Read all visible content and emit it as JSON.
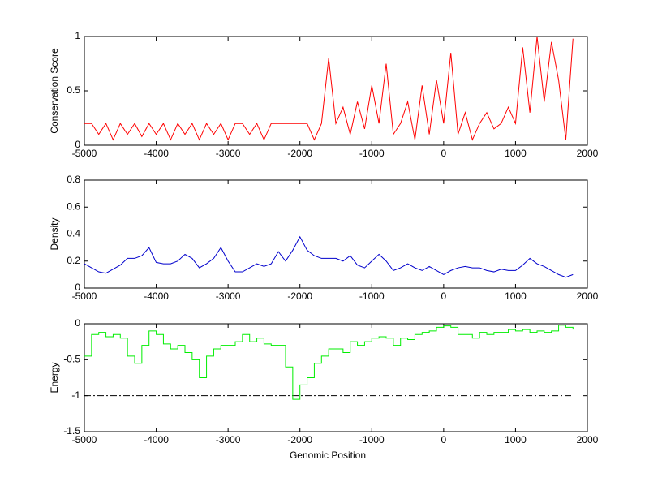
{
  "chart_data": [
    {
      "type": "line",
      "ylabel": "Conservation Score",
      "color": "#ff0000",
      "x": [
        -5000,
        -4900,
        -4800,
        -4700,
        -4600,
        -4500,
        -4400,
        -4300,
        -4200,
        -4100,
        -4000,
        -3900,
        -3800,
        -3700,
        -3600,
        -3500,
        -3400,
        -3300,
        -3200,
        -3100,
        -3000,
        -2900,
        -2800,
        -2700,
        -2600,
        -2500,
        -2400,
        -2300,
        -2200,
        -2100,
        -2000,
        -1900,
        -1800,
        -1700,
        -1600,
        -1500,
        -1400,
        -1300,
        -1200,
        -1100,
        -1000,
        -900,
        -800,
        -700,
        -600,
        -500,
        -400,
        -300,
        -200,
        -100,
        0,
        100,
        200,
        300,
        400,
        500,
        600,
        700,
        800,
        900,
        1000,
        1100,
        1200,
        1300,
        1400,
        1500,
        1600,
        1700,
        1800
      ],
      "values": [
        0.2,
        0.2,
        0.1,
        0.2,
        0.05,
        0.2,
        0.1,
        0.2,
        0.08,
        0.2,
        0.1,
        0.2,
        0.05,
        0.2,
        0.1,
        0.2,
        0.05,
        0.2,
        0.1,
        0.2,
        0.05,
        0.2,
        0.2,
        0.1,
        0.2,
        0.05,
        0.2,
        0.2,
        0.2,
        0.2,
        0.2,
        0.2,
        0.05,
        0.2,
        0.8,
        0.2,
        0.35,
        0.1,
        0.4,
        0.15,
        0.55,
        0.2,
        0.75,
        0.1,
        0.2,
        0.4,
        0.05,
        0.55,
        0.1,
        0.6,
        0.2,
        0.85,
        0.1,
        0.3,
        0.05,
        0.2,
        0.3,
        0.15,
        0.2,
        0.35,
        0.2,
        0.9,
        0.3,
        1.0,
        0.4,
        0.95,
        0.6,
        0.05,
        0.98
      ],
      "xlim": [
        -5000,
        2000
      ],
      "xticks": [
        -5000,
        -4000,
        -3000,
        -2000,
        -1000,
        0,
        1000,
        2000
      ],
      "ylim": [
        0,
        1
      ],
      "yticks": [
        0,
        0.5,
        1
      ]
    },
    {
      "type": "line",
      "ylabel": "Density",
      "color": "#0000cc",
      "x": [
        -5000,
        -4900,
        -4800,
        -4700,
        -4600,
        -4500,
        -4400,
        -4300,
        -4200,
        -4100,
        -4000,
        -3900,
        -3800,
        -3700,
        -3600,
        -3500,
        -3400,
        -3300,
        -3200,
        -3100,
        -3000,
        -2900,
        -2800,
        -2700,
        -2600,
        -2500,
        -2400,
        -2300,
        -2200,
        -2100,
        -2000,
        -1900,
        -1800,
        -1700,
        -1600,
        -1500,
        -1400,
        -1300,
        -1200,
        -1100,
        -1000,
        -900,
        -800,
        -700,
        -600,
        -500,
        -400,
        -300,
        -200,
        -100,
        0,
        100,
        200,
        300,
        400,
        500,
        600,
        700,
        800,
        900,
        1000,
        1100,
        1200,
        1300,
        1400,
        1500,
        1600,
        1700,
        1800
      ],
      "values": [
        0.18,
        0.15,
        0.12,
        0.11,
        0.14,
        0.17,
        0.22,
        0.22,
        0.24,
        0.3,
        0.19,
        0.18,
        0.18,
        0.2,
        0.25,
        0.22,
        0.15,
        0.18,
        0.22,
        0.3,
        0.2,
        0.12,
        0.12,
        0.15,
        0.18,
        0.16,
        0.18,
        0.27,
        0.2,
        0.28,
        0.38,
        0.28,
        0.24,
        0.22,
        0.22,
        0.22,
        0.2,
        0.24,
        0.17,
        0.15,
        0.2,
        0.25,
        0.2,
        0.13,
        0.15,
        0.18,
        0.15,
        0.13,
        0.16,
        0.13,
        0.1,
        0.13,
        0.15,
        0.16,
        0.15,
        0.15,
        0.13,
        0.12,
        0.14,
        0.13,
        0.13,
        0.17,
        0.22,
        0.18,
        0.16,
        0.13,
        0.1,
        0.08,
        0.1
      ],
      "xlim": [
        -5000,
        2000
      ],
      "xticks": [
        -5000,
        -4000,
        -3000,
        -2000,
        -1000,
        0,
        1000,
        2000
      ],
      "ylim": [
        0,
        0.8
      ],
      "yticks": [
        0,
        0.2,
        0.4,
        0.6,
        0.8
      ]
    },
    {
      "type": "line",
      "ylabel": "Energy",
      "xlabel": "Genomic Position",
      "color": "#00ee00",
      "drawstyle": "steps",
      "x": [
        -5000,
        -4900,
        -4800,
        -4700,
        -4600,
        -4500,
        -4400,
        -4300,
        -4200,
        -4100,
        -4000,
        -3900,
        -3800,
        -3700,
        -3600,
        -3500,
        -3400,
        -3300,
        -3200,
        -3100,
        -3000,
        -2900,
        -2800,
        -2700,
        -2600,
        -2500,
        -2400,
        -2300,
        -2200,
        -2100,
        -2000,
        -1900,
        -1800,
        -1700,
        -1600,
        -1500,
        -1400,
        -1300,
        -1200,
        -1100,
        -1000,
        -900,
        -800,
        -700,
        -600,
        -500,
        -400,
        -300,
        -200,
        -100,
        0,
        100,
        200,
        300,
        400,
        500,
        600,
        700,
        800,
        900,
        1000,
        1100,
        1200,
        1300,
        1400,
        1500,
        1600,
        1700,
        1800
      ],
      "values": [
        -0.45,
        -0.15,
        -0.12,
        -0.18,
        -0.15,
        -0.2,
        -0.45,
        -0.55,
        -0.3,
        -0.1,
        -0.15,
        -0.28,
        -0.35,
        -0.3,
        -0.4,
        -0.5,
        -0.75,
        -0.45,
        -0.35,
        -0.3,
        -0.3,
        -0.25,
        -0.15,
        -0.25,
        -0.2,
        -0.28,
        -0.3,
        -0.3,
        -0.6,
        -1.05,
        -0.85,
        -0.75,
        -0.55,
        -0.45,
        -0.35,
        -0.35,
        -0.4,
        -0.25,
        -0.3,
        -0.25,
        -0.2,
        -0.18,
        -0.2,
        -0.3,
        -0.2,
        -0.22,
        -0.15,
        -0.12,
        -0.1,
        -0.05,
        -0.03,
        -0.05,
        -0.15,
        -0.15,
        -0.2,
        -0.12,
        -0.15,
        -0.12,
        -0.12,
        -0.08,
        -0.1,
        -0.08,
        -0.12,
        -0.1,
        -0.12,
        -0.1,
        -0.02,
        -0.05,
        -0.08
      ],
      "hline": {
        "value": -1,
        "xlim": [
          -5000,
          1800
        ],
        "color": "#000000",
        "style": "dashdot"
      },
      "xlim": [
        -5000,
        2000
      ],
      "xticks": [
        -5000,
        -4000,
        -3000,
        -2000,
        -1000,
        0,
        1000,
        2000
      ],
      "ylim": [
        -1.5,
        0
      ],
      "yticks": [
        -1.5,
        -1,
        -0.5,
        0
      ]
    }
  ]
}
